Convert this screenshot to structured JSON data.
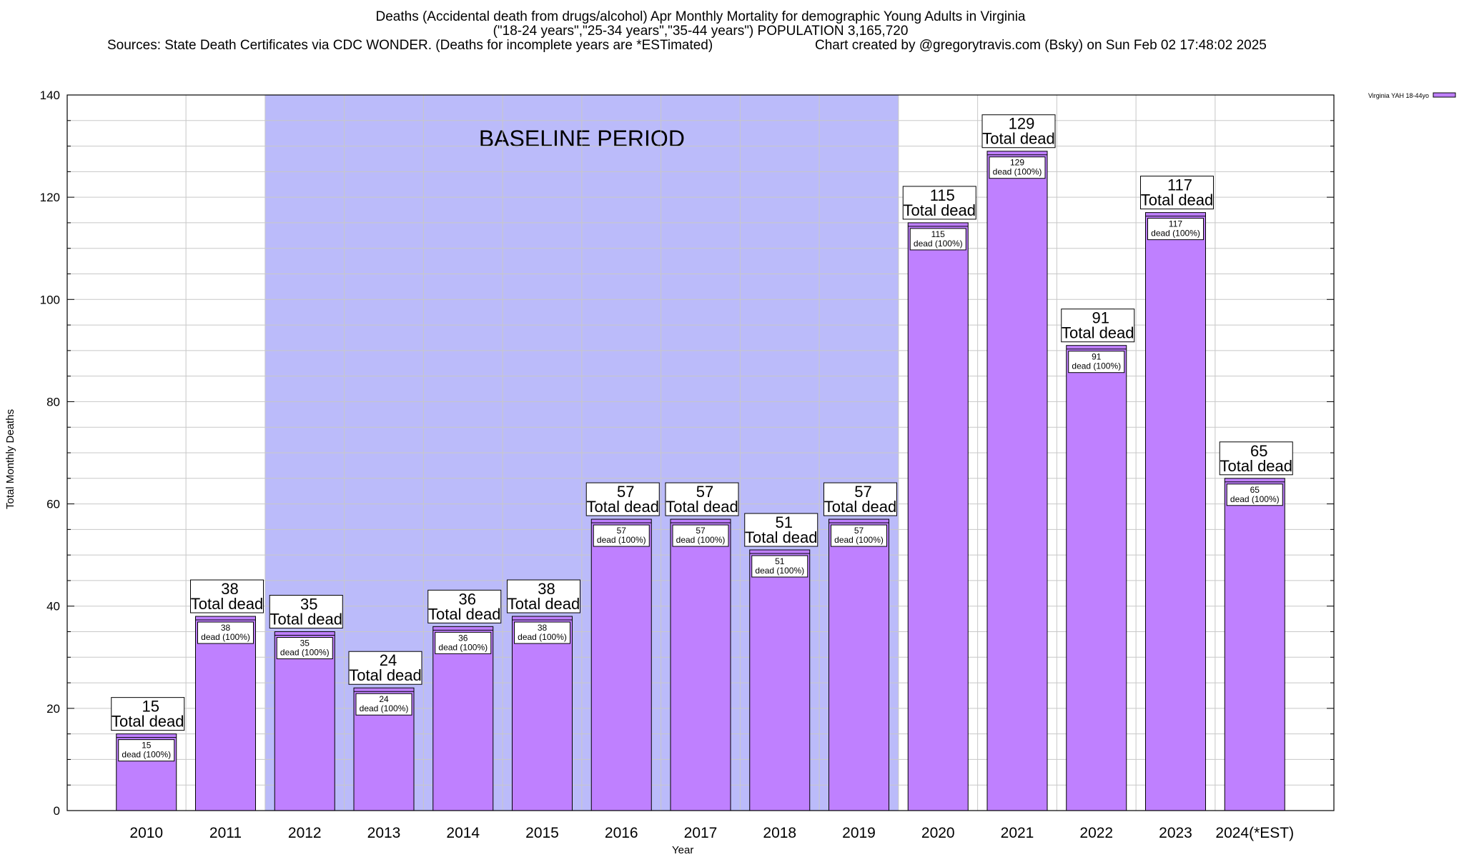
{
  "title_lines": [
    "Deaths (Accidental death from drugs/alcohol) Apr Monthly Mortality for demographic Young Adults in Virginia",
    "(\"18-24 years\",\"25-34 years\",\"35-44 years\") POPULATION 3,165,720",
    "Sources: State Death Certificates via CDC WONDER. (Deaths for incomplete years are *ESTimated)",
    "Chart created by @gregorytravis.com (Bsky) on Sun Feb 02 17:48:02 2025"
  ],
  "chart_data": {
    "type": "bar",
    "categories": [
      "2010",
      "2011",
      "2012",
      "2013",
      "2014",
      "2015",
      "2016",
      "2017",
      "2018",
      "2019",
      "2020",
      "2021",
      "2022",
      "2023",
      "2024(*EST)"
    ],
    "series": [
      {
        "name": "Virginia YAH 18-44yo",
        "values": [
          15,
          38,
          35,
          24,
          36,
          38,
          57,
          57,
          51,
          57,
          115,
          129,
          91,
          117,
          65
        ]
      }
    ],
    "xlabel": "Year",
    "ylabel": "Total Monthly Deaths",
    "ylim": [
      0,
      140
    ],
    "yticks": [
      "0",
      "20",
      "40",
      "60",
      "80",
      "100",
      "120",
      "140"
    ],
    "grid": true,
    "legend_position": "top-right",
    "baseline_label": "BASELINE PERIOD",
    "baseline_range": [
      "2012",
      "2019"
    ],
    "total_label": "Total dead",
    "segment_label_suffix": "dead (100%)",
    "colors": {
      "bar": "#bf80ff",
      "baseline_band": "#bbbbfa",
      "grid": "#c8c8c8"
    }
  }
}
